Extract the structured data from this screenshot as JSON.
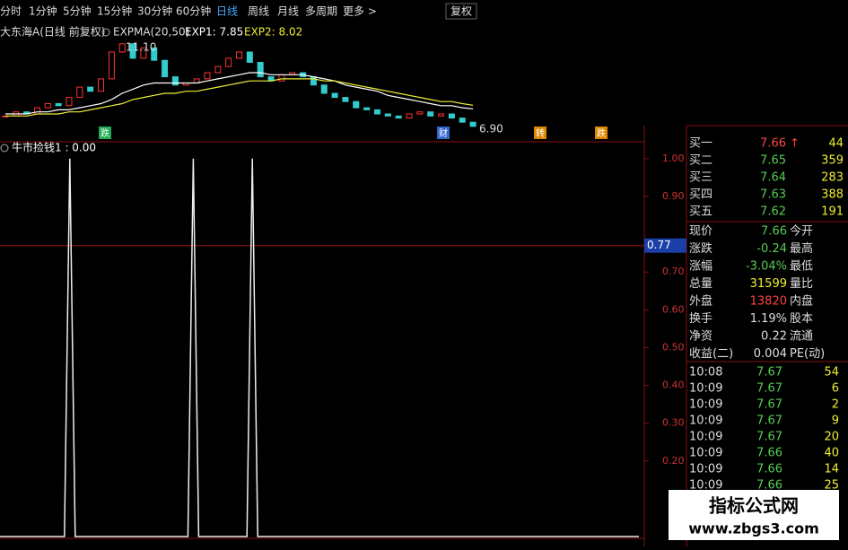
{
  "toolbar": {
    "tabs": [
      "分时",
      "1分钟",
      "5分钟",
      "15分钟",
      "30分钟",
      "60分钟",
      "日线",
      "周线",
      "月线",
      "多周期",
      "更多 >"
    ],
    "adjust": "复权"
  },
  "price_chart": {
    "title": "大东海A(日线 前复权)",
    "indicator": "EXPMA(20,50)",
    "exp1_label": "EXP1: 7.85",
    "exp2_label": "EXP2: 8.02",
    "high_label": "11.10",
    "low_label": "6.90",
    "ylim": [
      6.6,
      11.6
    ],
    "closes": [
      7.5,
      7.7,
      7.6,
      7.9,
      8.1,
      8.0,
      8.4,
      8.9,
      8.7,
      9.3,
      10.6,
      11.0,
      10.3,
      10.8,
      10.2,
      9.4,
      9.0,
      9.1,
      9.3,
      9.6,
      9.9,
      10.3,
      10.6,
      10.1,
      9.4,
      9.2,
      9.5,
      9.6,
      9.4,
      9.0,
      8.6,
      8.4,
      8.2,
      7.9,
      7.8,
      7.6,
      7.5,
      7.4,
      7.6,
      7.7,
      7.5,
      7.6,
      7.4,
      7.2,
      7.0
    ],
    "exp1": [
      7.6,
      7.6,
      7.6,
      7.7,
      7.7,
      7.8,
      7.8,
      7.9,
      8.0,
      8.1,
      8.3,
      8.6,
      8.8,
      9.0,
      9.1,
      9.1,
      9.1,
      9.1,
      9.1,
      9.2,
      9.3,
      9.4,
      9.5,
      9.6,
      9.6,
      9.5,
      9.5,
      9.5,
      9.5,
      9.4,
      9.3,
      9.2,
      9.0,
      8.9,
      8.8,
      8.7,
      8.5,
      8.4,
      8.3,
      8.2,
      8.1,
      8.0,
      8.0,
      7.9,
      7.85
    ],
    "exp2": [
      7.5,
      7.5,
      7.5,
      7.6,
      7.6,
      7.6,
      7.7,
      7.7,
      7.8,
      7.9,
      8.0,
      8.1,
      8.3,
      8.4,
      8.5,
      8.6,
      8.6,
      8.7,
      8.7,
      8.8,
      8.9,
      9.0,
      9.1,
      9.2,
      9.2,
      9.2,
      9.3,
      9.3,
      9.3,
      9.3,
      9.2,
      9.2,
      9.1,
      9.0,
      8.9,
      8.8,
      8.7,
      8.6,
      8.5,
      8.4,
      8.3,
      8.2,
      8.2,
      8.1,
      8.02
    ],
    "markers": [
      "跌",
      "财",
      "转",
      "跌"
    ]
  },
  "indicator": {
    "title": "牛市捡钱1 : 0.00",
    "ylim": [
      0,
      1.04
    ],
    "xlim": [
      0,
      120
    ],
    "x": [
      0,
      12,
      13,
      14,
      35,
      36,
      37,
      46,
      47,
      48,
      119
    ],
    "values": [
      0,
      0,
      1,
      0,
      0,
      1,
      0,
      0,
      1,
      0,
      0
    ],
    "yticks": [
      {
        "value": 1,
        "label": "1.00"
      },
      {
        "value": 0.9,
        "label": "0.90"
      },
      {
        "value": 0.7,
        "label": "0.70"
      },
      {
        "value": 0.6,
        "label": "0.60"
      },
      {
        "value": 0.5,
        "label": "0.50"
      },
      {
        "value": 0.4,
        "label": "0.40"
      },
      {
        "value": 0.3,
        "label": "0.30"
      },
      {
        "value": 0.2,
        "label": "0.20"
      }
    ],
    "cursor": 0.77
  },
  "quote": {
    "bids": [
      {
        "label": "买一",
        "price": "7.66",
        "arrow": "↑",
        "volume": "44"
      },
      {
        "label": "买二",
        "price": "7.65",
        "volume": "359"
      },
      {
        "label": "买三",
        "price": "7.64",
        "volume": "283"
      },
      {
        "label": "买四",
        "price": "7.63",
        "volume": "388"
      },
      {
        "label": "买五",
        "price": "7.62",
        "volume": "191"
      }
    ],
    "stats": [
      [
        "现价",
        "7.66",
        "今开"
      ],
      [
        "涨跌",
        "-0.24",
        "最高"
      ],
      [
        "涨幅",
        "-3.04%",
        "最低"
      ],
      [
        "总量",
        "31599",
        "量比"
      ],
      [
        "外盘",
        "13820",
        "内盘"
      ],
      [
        "换手",
        "1.19%",
        "股本"
      ],
      [
        "净资",
        "0.22",
        "流通"
      ],
      [
        "收益(二)",
        "0.004",
        "PE(动)"
      ]
    ],
    "ticks": [
      [
        "10:08",
        "7.67",
        "54"
      ],
      [
        "10:09",
        "7.67",
        "6"
      ],
      [
        "10:09",
        "7.67",
        "2"
      ],
      [
        "10:09",
        "7.67",
        "9"
      ],
      [
        "10:09",
        "7.67",
        "20"
      ],
      [
        "10:09",
        "7.66",
        "40"
      ],
      [
        "10:09",
        "7.66",
        "14"
      ],
      [
        "10:09",
        "7.66",
        "25"
      ]
    ]
  },
  "watermark": {
    "name": "指标公式网",
    "url": "www.zbgs3.com"
  }
}
